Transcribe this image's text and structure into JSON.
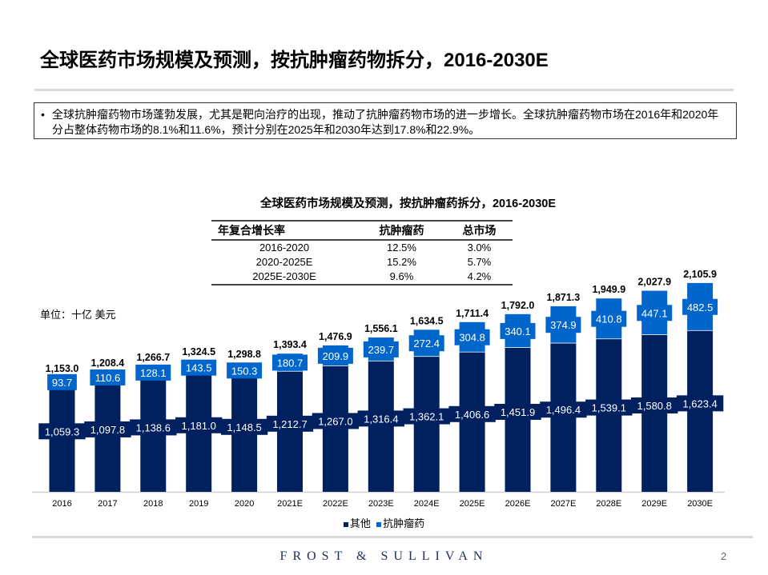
{
  "title": "全球医药市场规模及预测，按抗肿瘤药物拆分，2016-2030E",
  "bullet": "全球抗肿瘤药物市场蓬勃发展，尤其是靶向治疗的出现，推动了抗肿瘤药物市场的进一步增长。全球抗肿瘤药物市场在2016年和2020年分占整体药物市场的8.1%和11.6%，预计分别在2025年和2030年达到17.8%和22.9%。",
  "cagr_table": {
    "headers": [
      "年复合增长率",
      "抗肿瘤药",
      "总市场"
    ],
    "rows": [
      [
        "2016-2020",
        "12.5%",
        "3.0%"
      ],
      [
        "2020-2025E",
        "15.2%",
        "5.7%"
      ],
      [
        "2025E-2030E",
        "9.6%",
        "4.2%"
      ]
    ]
  },
  "chart_data": {
    "type": "bar",
    "stacked": true,
    "title": "全球医药市场规模及预测，按抗肿瘤药拆分，2016-2030E",
    "unit_label": "单位：十亿 美元",
    "categories": [
      "2016",
      "2017",
      "2018",
      "2019",
      "2020",
      "2021E",
      "2022E",
      "2023E",
      "2024E",
      "2025E",
      "2026E",
      "2027E",
      "2028E",
      "2029E",
      "2030E"
    ],
    "series": [
      {
        "name": "其他",
        "color": "#002060",
        "values": [
          1059.3,
          1097.8,
          1138.6,
          1181.0,
          1148.5,
          1212.7,
          1267.0,
          1316.4,
          1362.1,
          1406.6,
          1451.9,
          1496.4,
          1539.1,
          1580.8,
          1623.4
        ]
      },
      {
        "name": "抗肿瘤药",
        "color": "#0066cc",
        "values": [
          93.7,
          110.6,
          128.1,
          143.5,
          150.3,
          180.7,
          209.9,
          239.7,
          272.4,
          304.8,
          340.1,
          374.9,
          410.8,
          447.1,
          482.5
        ]
      }
    ],
    "totals": [
      1153.0,
      1208.4,
      1266.7,
      1324.5,
      1298.8,
      1393.4,
      1476.9,
      1556.1,
      1634.5,
      1711.4,
      1792.0,
      1871.3,
      1949.9,
      2027.9,
      2105.9
    ],
    "legend": "bottom",
    "grid": false
  },
  "footer": {
    "logo": "FROST & SULLIVAN",
    "page": "2"
  }
}
